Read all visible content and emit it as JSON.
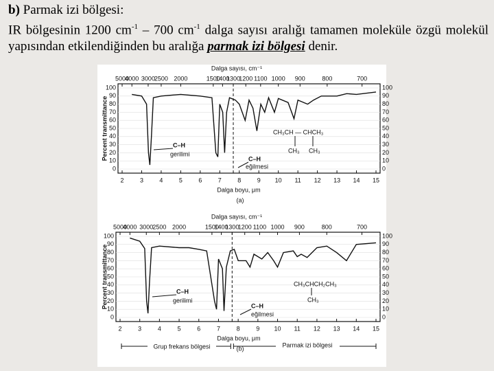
{
  "slide": {
    "label": "b)",
    "heading": "Parmak izi bölgesi:",
    "body": [
      "IR bölgesinin 1200 cm",
      "-1",
      " – 700 cm",
      "-1",
      " dalga sayısı aralığı tamamen moleküle özgü molekül yapısından etkilendiğinden bu aralığa ",
      "parmak izi bölgesi",
      " denir."
    ]
  },
  "chart_data": [
    {
      "type": "line",
      "panel": "(a)",
      "x_label": "Dalga boyu, μm",
      "x2_label": "Dalga sayısı, cm⁻¹",
      "y_label": "Percent transmittance",
      "xlim": [
        2,
        15
      ],
      "xticks": [
        2,
        3,
        4,
        5,
        6,
        7,
        8,
        9,
        10,
        11,
        12,
        13,
        14,
        15
      ],
      "x2ticks": [
        5000,
        4000,
        3000,
        2500,
        2000,
        1500,
        1400,
        1300,
        1200,
        1100,
        1000,
        900,
        800,
        700
      ],
      "ylim": [
        0,
        100
      ],
      "yticks": [
        0,
        10,
        20,
        30,
        40,
        50,
        60,
        70,
        80,
        90,
        100
      ],
      "annotations": [
        "C–H",
        "gerilimi",
        "C–H",
        "eğilmesi",
        "CH₃CH — CHCH₃",
        "CH₃",
        "CH₃"
      ],
      "series": [
        {
          "color": "#111111",
          "x": [
            2.5,
            3.0,
            3.25,
            3.35,
            3.42,
            3.5,
            3.6,
            4,
            5,
            6,
            6.6,
            6.8,
            6.9,
            7.0,
            7.15,
            7.25,
            7.35,
            7.5,
            7.8,
            8.0,
            8.3,
            8.5,
            8.7,
            8.9,
            9.1,
            9.3,
            9.5,
            9.8,
            10.0,
            10.5,
            10.8,
            11.0,
            11.5,
            11.8,
            12.2,
            13,
            13.5,
            14,
            15
          ],
          "values": [
            92,
            90,
            80,
            20,
            5,
            40,
            88,
            90,
            92,
            90,
            88,
            20,
            15,
            80,
            70,
            20,
            70,
            88,
            85,
            80,
            60,
            85,
            75,
            47,
            80,
            70,
            88,
            70,
            87,
            82,
            62,
            85,
            80,
            85,
            90,
            90,
            93,
            92,
            95
          ]
        }
      ]
    },
    {
      "type": "line",
      "panel": "(b)",
      "x_label": "Dalga boyu, μm",
      "x2_label": "Dalga sayısı, cm⁻¹",
      "y_label": "Percent transmittance",
      "xlim": [
        2,
        15
      ],
      "xticks": [
        2,
        3,
        4,
        5,
        6,
        7,
        8,
        9,
        10,
        11,
        12,
        13,
        14,
        15
      ],
      "x2ticks": [
        5000,
        4000,
        3000,
        2500,
        2000,
        1500,
        1400,
        1300,
        1200,
        1100,
        1000,
        900,
        800,
        700
      ],
      "ylim": [
        0,
        100
      ],
      "yticks": [
        0,
        10,
        20,
        30,
        40,
        50,
        60,
        70,
        80,
        90,
        100
      ],
      "annotations": [
        "C–H",
        "gerilimi",
        "C–H",
        "eğilmesi",
        "CH₃CHCH₂CH₃",
        "CH₃"
      ],
      "regions": [
        "Grup frekans bölgesi",
        "Parmak izi bölgesi"
      ],
      "series": [
        {
          "color": "#111111",
          "x": [
            2.5,
            3.0,
            3.25,
            3.35,
            3.42,
            3.5,
            3.6,
            4,
            5,
            5.5,
            6,
            6.4,
            6.8,
            6.9,
            7.0,
            7.2,
            7.28,
            7.4,
            7.6,
            7.8,
            8.0,
            8.4,
            8.6,
            8.8,
            9.2,
            9.5,
            9.8,
            10.0,
            10.3,
            10.8,
            11,
            11.2,
            11.5,
            12,
            12.5,
            13.0,
            13.5,
            14,
            15
          ],
          "values": [
            98,
            94,
            85,
            20,
            5,
            45,
            86,
            88,
            86,
            86,
            84,
            82,
            20,
            10,
            72,
            60,
            8,
            62,
            82,
            84,
            70,
            70,
            62,
            78,
            72,
            80,
            70,
            62,
            80,
            82,
            75,
            78,
            74,
            86,
            88,
            80,
            70,
            90,
            92
          ]
        }
      ]
    }
  ]
}
